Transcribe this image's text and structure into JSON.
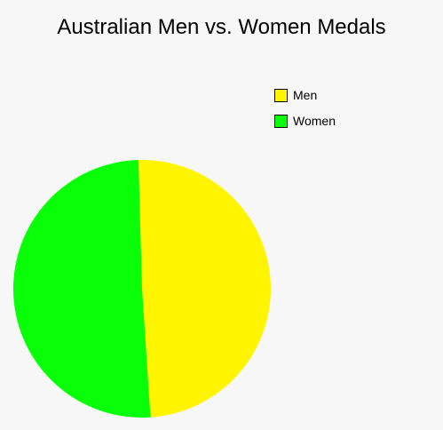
{
  "chart_data": {
    "type": "pie",
    "title": "Australian Men vs. Women Medals",
    "categories": [
      "Men",
      "Women"
    ],
    "values": [
      49.4,
      50.6
    ],
    "colors": [
      "#fff500",
      "#08ff08"
    ],
    "legend_position": "top-right",
    "grid": false
  }
}
